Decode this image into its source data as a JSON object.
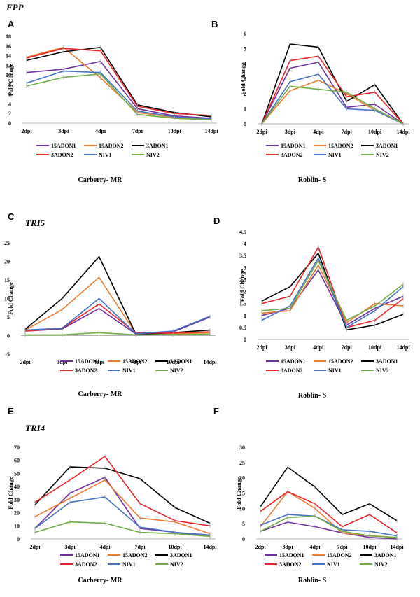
{
  "series_names": [
    "15ADON1",
    "15ADON2",
    "3ADON1",
    "3ADON2",
    "NIV1",
    "NIV2"
  ],
  "series_colors": [
    "#7030a0",
    "#ed7d31",
    "#000000",
    "#e8262b",
    "#4472c4",
    "#70ad47"
  ],
  "gene_titles": {
    "fpp": "FPP",
    "tri5": "TRI5",
    "tri4": "TRI4"
  },
  "chart_data": [
    {
      "id": "A",
      "panel_label": "A",
      "type": "line",
      "title": "Carberry- MR",
      "ylabel": "Fold Change",
      "xlabel": "",
      "categories": [
        "2dpi",
        "3dpi",
        "4dpi",
        "7dpi",
        "10dpi",
        "14dpi"
      ],
      "ylim": [
        0,
        18
      ],
      "yticks": [
        0,
        2,
        4,
        6,
        8,
        10,
        12,
        14,
        16,
        18
      ],
      "legend": "bottom",
      "series": [
        {
          "name": "15ADON1",
          "values": [
            10.5,
            11.2,
            12.8,
            3.0,
            1.5,
            1.0
          ]
        },
        {
          "name": "15ADON2",
          "values": [
            13.7,
            15.7,
            9.4,
            2.2,
            1.2,
            0.8
          ]
        },
        {
          "name": "3ADON1",
          "values": [
            13.0,
            14.8,
            15.7,
            3.8,
            2.2,
            1.3
          ]
        },
        {
          "name": "3ADON2",
          "values": [
            13.5,
            15.5,
            15.0,
            3.5,
            2.0,
            1.6
          ]
        },
        {
          "name": "NIV1",
          "values": [
            8.3,
            10.8,
            10.5,
            2.5,
            1.3,
            0.9
          ]
        },
        {
          "name": "NIV2",
          "values": [
            7.7,
            9.5,
            10.2,
            1.8,
            1.0,
            0.7
          ]
        }
      ]
    },
    {
      "id": "B",
      "panel_label": "B",
      "type": "line",
      "title": "Roblin- S",
      "ylabel": "Fold Change",
      "xlabel": "",
      "categories": [
        "2dpi",
        "3dpi",
        "4dpi",
        "7dpi",
        "10dpi",
        "14dpi"
      ],
      "ylim": [
        0,
        6
      ],
      "yticks": [
        0,
        1,
        2,
        3,
        4,
        5,
        6
      ],
      "legend": "bottom",
      "series": [
        {
          "name": "15ADON1",
          "values": [
            0,
            3.7,
            4.1,
            1.1,
            1.3,
            0
          ]
        },
        {
          "name": "15ADON2",
          "values": [
            0,
            2.2,
            2.9,
            2.0,
            0.9,
            0
          ]
        },
        {
          "name": "3ADON1",
          "values": [
            0,
            5.3,
            5.1,
            1.5,
            2.6,
            0
          ]
        },
        {
          "name": "3ADON2",
          "values": [
            0,
            4.2,
            4.5,
            1.8,
            2.1,
            0
          ]
        },
        {
          "name": "NIV1",
          "values": [
            0,
            2.8,
            3.3,
            1.0,
            0.9,
            0
          ]
        },
        {
          "name": "NIV2",
          "values": [
            0,
            2.5,
            2.3,
            2.1,
            1.0,
            0
          ]
        }
      ]
    },
    {
      "id": "C",
      "panel_label": "C",
      "type": "line",
      "title": "Carberry- MR",
      "ylabel": "Fold Change",
      "xlabel": "",
      "categories": [
        "2dpi",
        "3dpi",
        "4dpi",
        "7dpi",
        "10dpi",
        "14dpi"
      ],
      "ylim": [
        -5,
        25
      ],
      "yticks": [
        -5,
        0,
        5,
        10,
        15,
        20,
        25
      ],
      "legend": "bottom",
      "series": [
        {
          "name": "15ADON1",
          "values": [
            1.2,
            1.8,
            7.3,
            0.4,
            1.0,
            5.0
          ]
        },
        {
          "name": "15ADON2",
          "values": [
            1.5,
            7.0,
            15.7,
            0.5,
            0.5,
            0.8
          ]
        },
        {
          "name": "3ADON1",
          "values": [
            1.7,
            10.0,
            21.3,
            0.3,
            0.8,
            1.5
          ]
        },
        {
          "name": "3ADON2",
          "values": [
            1.2,
            2.0,
            8.5,
            0.7,
            0.7,
            1.0
          ]
        },
        {
          "name": "NIV1",
          "values": [
            1.5,
            2.0,
            10.0,
            0.5,
            1.2,
            5.2
          ]
        },
        {
          "name": "NIV2",
          "values": [
            0.2,
            0.2,
            0.8,
            0.2,
            0.3,
            0.4
          ]
        }
      ]
    },
    {
      "id": "D",
      "panel_label": "D",
      "type": "line",
      "title": "Roblin- S",
      "ylabel": "Fold Change",
      "xlabel": "",
      "categories": [
        "2dpi",
        "3dpi",
        "4dpi",
        "7dpi",
        "10dpi",
        "14dpi"
      ],
      "ylim": [
        0,
        4.5
      ],
      "yticks": [
        0,
        0.5,
        1,
        1.5,
        2,
        2.5,
        3,
        3.5,
        4,
        4.5
      ],
      "legend": "bottom",
      "series": [
        {
          "name": "15ADON1",
          "values": [
            1.0,
            1.3,
            2.9,
            0.6,
            1.3,
            1.8
          ]
        },
        {
          "name": "15ADON2",
          "values": [
            1.1,
            1.2,
            3.1,
            0.7,
            1.5,
            1.4
          ]
        },
        {
          "name": "3ADON1",
          "values": [
            1.6,
            2.2,
            3.6,
            0.4,
            0.6,
            1.05
          ]
        },
        {
          "name": "3ADON2",
          "values": [
            1.5,
            1.8,
            3.85,
            0.5,
            0.8,
            1.7
          ]
        },
        {
          "name": "NIV1",
          "values": [
            0.8,
            1.4,
            3.4,
            0.5,
            1.2,
            2.2
          ]
        },
        {
          "name": "NIV2",
          "values": [
            1.2,
            1.3,
            3.3,
            0.8,
            1.4,
            2.3
          ]
        }
      ]
    },
    {
      "id": "E",
      "panel_label": "E",
      "type": "line",
      "title": "Carberry- MR",
      "ylabel": "Fold Change",
      "xlabel": "",
      "categories": [
        "2dpi",
        "3dpi",
        "4dpi",
        "7dpi",
        "10dpi",
        "14dpi"
      ],
      "ylim": [
        0,
        70
      ],
      "yticks": [
        0,
        10,
        20,
        30,
        40,
        50,
        60,
        70
      ],
      "legend": "bottom",
      "series": [
        {
          "name": "15ADON1",
          "values": [
            8,
            35,
            47,
            8,
            5,
            2
          ]
        },
        {
          "name": "15ADON2",
          "values": [
            17,
            31,
            45,
            16,
            13,
            4
          ]
        },
        {
          "name": "3ADON1",
          "values": [
            26,
            55,
            54,
            46,
            24,
            12
          ]
        },
        {
          "name": "3ADON2",
          "values": [
            28,
            45,
            63,
            27,
            14,
            10
          ]
        },
        {
          "name": "NIV1",
          "values": [
            8,
            28,
            32,
            9,
            5,
            3
          ]
        },
        {
          "name": "NIV2",
          "values": [
            5,
            13,
            12,
            5,
            4,
            2
          ]
        }
      ]
    },
    {
      "id": "F",
      "panel_label": "F",
      "type": "line",
      "title": "Roblin- S",
      "ylabel": "Fold Change",
      "xlabel": "",
      "categories": [
        "2dpi",
        "3dpi",
        "4dpi",
        "7dpi",
        "10dpi",
        "14dpi"
      ],
      "ylim": [
        0,
        30
      ],
      "yticks": [
        0,
        5,
        10,
        15,
        20,
        25,
        30
      ],
      "legend": "bottom",
      "series": [
        {
          "name": "15ADON1",
          "values": [
            2.5,
            5.5,
            4,
            2,
            0.5,
            0
          ]
        },
        {
          "name": "15ADON2",
          "values": [
            4,
            15.5,
            10,
            2,
            1,
            0.5
          ]
        },
        {
          "name": "3ADON1",
          "values": [
            10.5,
            23.5,
            17,
            8,
            11.5,
            6
          ]
        },
        {
          "name": "3ADON2",
          "values": [
            9,
            15.5,
            11.5,
            4,
            8,
            2
          ]
        },
        {
          "name": "NIV1",
          "values": [
            4.5,
            8,
            7.5,
            3,
            2.5,
            1
          ]
        },
        {
          "name": "NIV2",
          "values": [
            2.5,
            7,
            7.5,
            2.5,
            1,
            0.5
          ]
        }
      ]
    }
  ]
}
